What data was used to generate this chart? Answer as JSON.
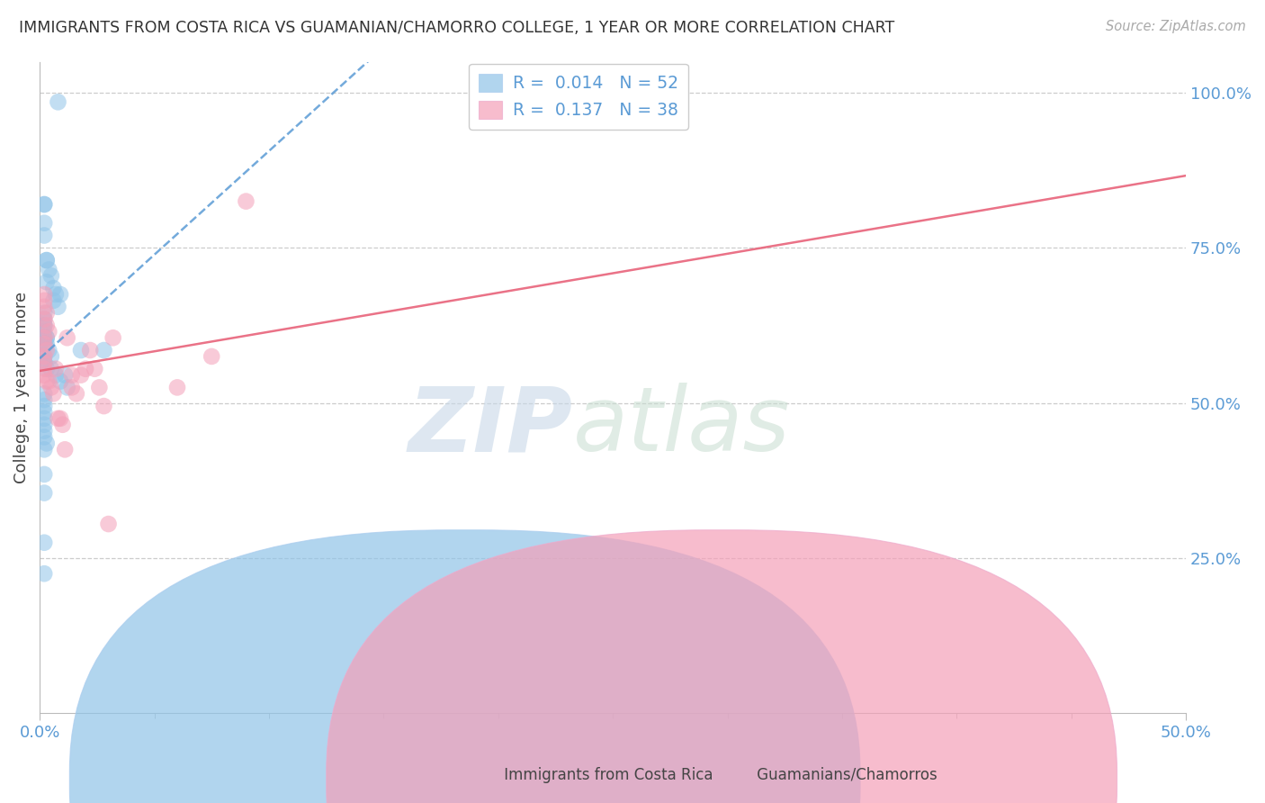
{
  "title": "IMMIGRANTS FROM COSTA RICA VS GUAMANIAN/CHAMORRO COLLEGE, 1 YEAR OR MORE CORRELATION CHART",
  "source": "Source: ZipAtlas.com",
  "legend_label1": "Immigrants from Costa Rica",
  "legend_label2": "Guamanians/Chamorros",
  "R1": "0.014",
  "N1": "52",
  "R2": "0.137",
  "N2": "38",
  "color_blue": "#90c4e8",
  "color_pink": "#f4a0b8",
  "color_blue_line": "#5b9bd5",
  "color_pink_line": "#e8637a",
  "blue_scatter_x": [
    0.008,
    0.002,
    0.002,
    0.002,
    0.002,
    0.003,
    0.003,
    0.004,
    0.005,
    0.003,
    0.006,
    0.007,
    0.009,
    0.006,
    0.008,
    0.002,
    0.002,
    0.002,
    0.002,
    0.002,
    0.003,
    0.002,
    0.003,
    0.002,
    0.003,
    0.004,
    0.005,
    0.002,
    0.002,
    0.002,
    0.003,
    0.005,
    0.007,
    0.009,
    0.012,
    0.018,
    0.002,
    0.002,
    0.002,
    0.002,
    0.002,
    0.002,
    0.002,
    0.002,
    0.003,
    0.002,
    0.002,
    0.002,
    0.011,
    0.002,
    0.002,
    0.028
  ],
  "blue_scatter_y": [
    0.985,
    0.82,
    0.82,
    0.79,
    0.77,
    0.73,
    0.73,
    0.715,
    0.705,
    0.695,
    0.685,
    0.675,
    0.675,
    0.665,
    0.655,
    0.645,
    0.635,
    0.625,
    0.625,
    0.615,
    0.605,
    0.605,
    0.605,
    0.595,
    0.595,
    0.585,
    0.575,
    0.575,
    0.565,
    0.565,
    0.555,
    0.555,
    0.545,
    0.535,
    0.525,
    0.585,
    0.515,
    0.505,
    0.495,
    0.485,
    0.475,
    0.465,
    0.455,
    0.445,
    0.435,
    0.425,
    0.385,
    0.355,
    0.545,
    0.275,
    0.225,
    0.585
  ],
  "pink_scatter_x": [
    0.002,
    0.002,
    0.002,
    0.003,
    0.002,
    0.003,
    0.004,
    0.002,
    0.002,
    0.003,
    0.002,
    0.002,
    0.002,
    0.002,
    0.003,
    0.004,
    0.005,
    0.006,
    0.007,
    0.008,
    0.009,
    0.01,
    0.011,
    0.012,
    0.014,
    0.014,
    0.016,
    0.018,
    0.02,
    0.022,
    0.024,
    0.026,
    0.028,
    0.03,
    0.032,
    0.06,
    0.075,
    0.09
  ],
  "pink_scatter_y": [
    0.675,
    0.665,
    0.655,
    0.645,
    0.635,
    0.625,
    0.615,
    0.605,
    0.595,
    0.585,
    0.575,
    0.565,
    0.555,
    0.545,
    0.535,
    0.535,
    0.525,
    0.515,
    0.555,
    0.475,
    0.475,
    0.465,
    0.425,
    0.605,
    0.525,
    0.545,
    0.515,
    0.545,
    0.555,
    0.585,
    0.555,
    0.525,
    0.495,
    0.305,
    0.605,
    0.525,
    0.575,
    0.825
  ],
  "xlim": [
    0.0,
    0.5
  ],
  "ylim": [
    0.0,
    1.05
  ],
  "yticks": [
    0.25,
    0.5,
    0.75,
    1.0
  ],
  "ytick_labels": [
    "25.0%",
    "50.0%",
    "75.0%",
    "100.0%"
  ],
  "xtick_positions": [
    0.0,
    0.5
  ],
  "xtick_labels": [
    "0.0%",
    "50.0%"
  ],
  "grid_color": "#cccccc",
  "background_color": "#ffffff",
  "title_color": "#333333",
  "axis_label_color": "#5b9bd5",
  "ylabel": "College, 1 year or more"
}
